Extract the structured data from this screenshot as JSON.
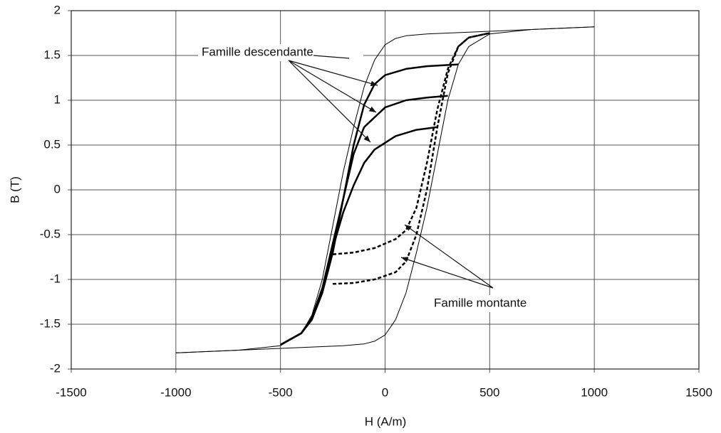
{
  "chart_data": {
    "type": "line",
    "xlabel": "H (A/m)",
    "ylabel": "B (T)",
    "annotations": [
      "Famille descendante",
      "Famille montante"
    ],
    "xlim": [
      -1500,
      1500
    ],
    "xticks": [
      -1500,
      -1000,
      -500,
      0,
      500,
      1000,
      1500
    ],
    "ylim": [
      -2,
      2
    ],
    "yticks": [
      -2,
      -1.5,
      -1,
      -0.5,
      0,
      0.5,
      1,
      1.5,
      2
    ],
    "grid": true,
    "series": [
      {
        "color": "#000000",
        "line_width": 1,
        "dash": false,
        "x": [
          1000,
          500,
          300,
          200,
          100,
          50,
          0,
          -50,
          -100,
          -150,
          -200,
          -250,
          -300,
          -350,
          -400,
          -500,
          -700,
          -1000
        ],
        "values": [
          1.82,
          1.77,
          1.75,
          1.74,
          1.72,
          1.69,
          1.62,
          1.45,
          1.15,
          0.7,
          0.2,
          -0.4,
          -1.0,
          -1.4,
          -1.6,
          -1.74,
          -1.79,
          -1.82
        ]
      },
      {
        "color": "#000000",
        "line_width": 1,
        "dash": false,
        "x": [
          -1000,
          -500,
          -300,
          -200,
          -100,
          -50,
          0,
          50,
          100,
          150,
          200,
          250,
          300,
          350,
          400,
          500,
          700,
          1000
        ],
        "values": [
          -1.82,
          -1.77,
          -1.75,
          -1.74,
          -1.72,
          -1.69,
          -1.62,
          -1.45,
          -1.15,
          -0.7,
          -0.2,
          0.4,
          1.0,
          1.4,
          1.6,
          1.74,
          1.79,
          1.82
        ]
      },
      {
        "color": "#000000",
        "line_width": 2.5,
        "dash": false,
        "x": [
          350,
          200,
          100,
          0,
          -50,
          -100,
          -150,
          -200,
          -250,
          -300,
          -350,
          -400,
          -500
        ],
        "values": [
          1.4,
          1.38,
          1.35,
          1.28,
          1.18,
          0.95,
          0.5,
          -0.1,
          -0.7,
          -1.15,
          -1.45,
          -1.6,
          -1.73
        ]
      },
      {
        "color": "#000000",
        "line_width": 2.5,
        "dash": false,
        "x": [
          300,
          200,
          100,
          0,
          -100,
          -150,
          -200,
          -250,
          -300,
          -350,
          -400,
          -500
        ],
        "values": [
          1.05,
          1.03,
          1.0,
          0.92,
          0.7,
          0.4,
          -0.1,
          -0.6,
          -1.1,
          -1.43,
          -1.6,
          -1.73
        ]
      },
      {
        "color": "#000000",
        "line_width": 2.5,
        "dash": false,
        "x": [
          250,
          150,
          50,
          -50,
          -100,
          -150,
          -200,
          -250,
          -300,
          -350,
          -400,
          -500
        ],
        "values": [
          0.7,
          0.67,
          0.6,
          0.45,
          0.3,
          0.05,
          -0.25,
          -0.65,
          -1.1,
          -1.43,
          -1.6,
          -1.73
        ]
      },
      {
        "color": "#000000",
        "line_width": 2.5,
        "dash": true,
        "x": [
          -250,
          -150,
          -50,
          50,
          100,
          150,
          200,
          250,
          300,
          350,
          400,
          500
        ],
        "values": [
          -0.72,
          -0.7,
          -0.65,
          -0.55,
          -0.45,
          -0.2,
          0.3,
          0.9,
          1.35,
          1.6,
          1.7,
          1.75
        ]
      },
      {
        "color": "#000000",
        "line_width": 2.5,
        "dash": true,
        "x": [
          -250,
          -150,
          -50,
          50,
          100,
          150,
          200,
          250,
          300,
          350,
          400,
          500
        ],
        "values": [
          -1.05,
          -1.04,
          -1.0,
          -0.92,
          -0.8,
          -0.5,
          0.0,
          0.7,
          1.3,
          1.6,
          1.7,
          1.75
        ]
      }
    ]
  }
}
